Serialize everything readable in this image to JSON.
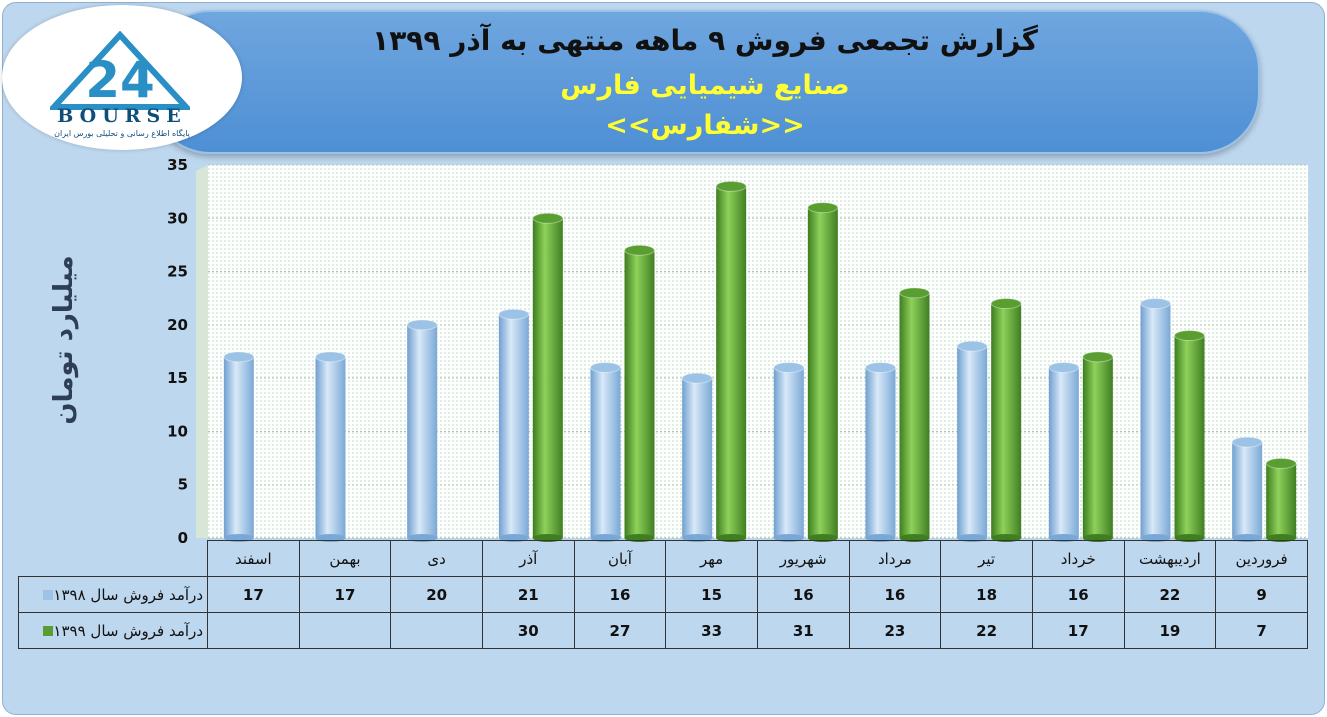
{
  "header": {
    "title": "گزارش تجمعی فروش ۹ ماهه منتهی به آذر ۱۳۹۹",
    "subtitle": "صنایع شیمیایی فارس",
    "ticker": "<<شفارس>>"
  },
  "logo": {
    "mark": "24",
    "word": "BOURSE",
    "tagline": "پایگاه اطلاع رسانی و تحلیلی بورس ایران"
  },
  "colors": {
    "series_1398": "#9cc3e6",
    "series_1399": "#5a9e32"
  },
  "chart_data": {
    "type": "bar",
    "ylabel": "میلیارد تومان",
    "ylim": [
      0,
      35
    ],
    "yticks": [
      0,
      5,
      10,
      15,
      20,
      25,
      30,
      35
    ],
    "grid": true,
    "categories": [
      "فروردین",
      "اردیبهشت",
      "خرداد",
      "تیر",
      "مرداد",
      "شهریور",
      "مهر",
      "آبان",
      "آذر",
      "دی",
      "بهمن",
      "اسفند"
    ],
    "series": [
      {
        "name": "درآمد فروش سال ۱۳۹۸",
        "values": [
          9,
          22,
          16,
          18,
          16,
          16,
          15,
          16,
          21,
          20,
          17,
          17
        ]
      },
      {
        "name": "درآمد فروش سال ۱۳۹۹",
        "values": [
          7,
          19,
          17,
          22,
          23,
          31,
          33,
          27,
          30,
          null,
          null,
          null
        ]
      }
    ]
  }
}
